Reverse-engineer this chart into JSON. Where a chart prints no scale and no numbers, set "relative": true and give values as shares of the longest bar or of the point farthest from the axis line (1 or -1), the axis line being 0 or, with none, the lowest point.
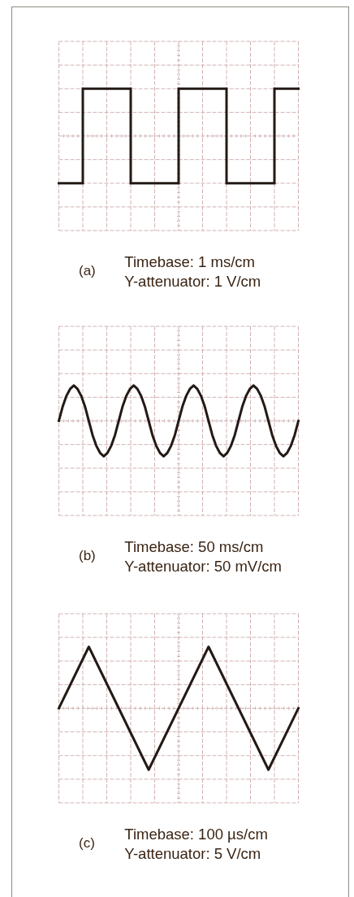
{
  "chart_data": [
    {
      "type": "step",
      "title": "(a)",
      "annotations": [
        "Timebase: 1 ms/cm",
        "Y-attenuator: 1 V/cm"
      ],
      "categories": [
        null,
        null,
        null,
        null,
        null,
        null,
        null,
        null,
        null,
        null,
        null
      ],
      "values": [
        -1,
        1,
        1,
        -1,
        -1,
        1,
        1,
        -1,
        -1,
        1,
        1
      ],
      "color": "#231a16",
      "relative": true,
      "grid": true
    },
    {
      "type": "line",
      "title": "(b)",
      "annotations": [
        "Timebase: 50 ms/cm",
        "Y-attenuator: 50 mV/cm"
      ],
      "categories": [
        null,
        null,
        null,
        null,
        null,
        null,
        null,
        null,
        null,
        null,
        null,
        null,
        null,
        null,
        null,
        null,
        null,
        null,
        null,
        null,
        null,
        null,
        null,
        null,
        null,
        null,
        null,
        null,
        null,
        null,
        null,
        null,
        null,
        null,
        null,
        null,
        null,
        null,
        null,
        null,
        null,
        null,
        null,
        null,
        null,
        null,
        null,
        null,
        null,
        null,
        null,
        null,
        null,
        null,
        null,
        null,
        null,
        null,
        null,
        null,
        null,
        null,
        null,
        null,
        null
      ],
      "values": [
        0,
        0.4,
        0.7,
        0.9,
        1,
        0.9,
        0.7,
        0.4,
        0,
        -0.4,
        -0.7,
        -0.9,
        -1,
        -0.9,
        -0.7,
        -0.4,
        0,
        0.4,
        0.7,
        0.9,
        1,
        0.9,
        0.7,
        0.4,
        0,
        -0.4,
        -0.7,
        -0.9,
        -1,
        -0.9,
        -0.7,
        -0.4,
        0,
        0.4,
        0.7,
        0.9,
        1,
        0.9,
        0.7,
        0.4,
        0,
        -0.4,
        -0.7,
        -0.9,
        -1,
        -0.9,
        -0.7,
        -0.4,
        0,
        0.4,
        0.7,
        0.9,
        1,
        0.9,
        0.7,
        0.4,
        0,
        -0.4,
        -0.7,
        -0.9,
        -1,
        -0.9,
        -0.7,
        -0.4,
        0
      ],
      "color": "#231a16",
      "relative": true,
      "grid": true
    },
    {
      "type": "line",
      "title": "(c)",
      "annotations": [
        "Timebase: 100 µs/cm",
        "Y-attenuator: 5 V/cm"
      ],
      "categories": [
        null,
        null,
        null,
        null,
        null,
        null,
        null,
        null,
        null
      ],
      "values": [
        0,
        1,
        0,
        -1,
        0,
        1,
        0,
        -1,
        0
      ],
      "color": "#231a16",
      "relative": true,
      "grid": true
    }
  ]
}
